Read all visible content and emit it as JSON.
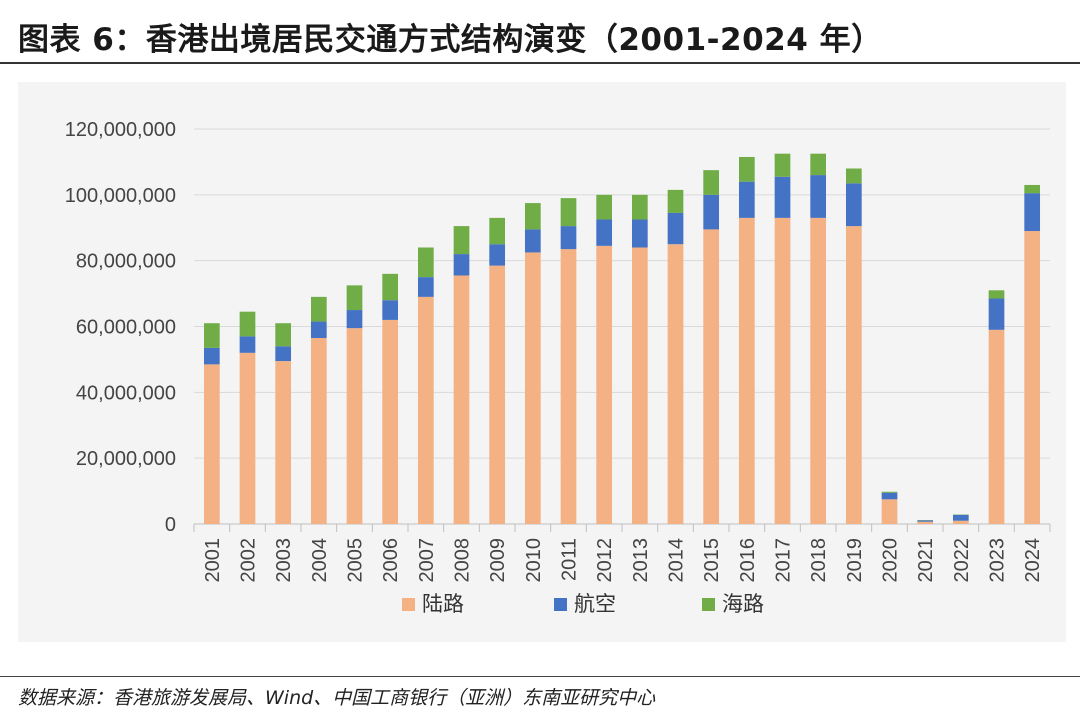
{
  "title": "图表 6：香港出境居民交通方式结构演变（2001-2024 年）",
  "source": "数据来源：香港旅游发展局、Wind、中国工商银行（亚洲）东南亚研究中心",
  "colors": {
    "land": "#F4B183",
    "air": "#4472C4",
    "sea": "#70AD47"
  },
  "chart_data": {
    "type": "bar",
    "stacked": true,
    "title": "",
    "xlabel": "",
    "ylabel": "",
    "ylim": [
      0,
      120000000
    ],
    "ytick_values": [
      0,
      20000000,
      40000000,
      60000000,
      80000000,
      100000000,
      120000000
    ],
    "ytick_labels": [
      "0",
      "20,000,000",
      "40,000,000",
      "60,000,000",
      "80,000,000",
      "100,000,000",
      "120,000,000"
    ],
    "grid": true,
    "legend_position": "bottom",
    "categories": [
      "2001",
      "2002",
      "2003",
      "2004",
      "2005",
      "2006",
      "2007",
      "2008",
      "2009",
      "2010",
      "2011",
      "2012",
      "2013",
      "2014",
      "2015",
      "2016",
      "2017",
      "2018",
      "2019",
      "2020",
      "2021",
      "2022",
      "2023",
      "2024"
    ],
    "series": [
      {
        "name": "陆路",
        "color_key": "land",
        "values": [
          48500000,
          52000000,
          49500000,
          56500000,
          59500000,
          62000000,
          69000000,
          75500000,
          78500000,
          82500000,
          83500000,
          84500000,
          84000000,
          85000000,
          89500000,
          93000000,
          93000000,
          93000000,
          90500000,
          7500000,
          700000,
          1000000,
          59000000,
          89000000
        ]
      },
      {
        "name": "航空",
        "color_key": "air",
        "values": [
          5000000,
          5000000,
          4500000,
          5000000,
          5500000,
          6000000,
          6000000,
          6500000,
          6500000,
          7000000,
          7000000,
          8000000,
          8500000,
          9500000,
          10500000,
          11000000,
          12500000,
          13000000,
          13000000,
          2000000,
          400000,
          1800000,
          9500000,
          11500000
        ]
      },
      {
        "name": "海路",
        "color_key": "sea",
        "values": [
          7500000,
          7500000,
          7000000,
          7500000,
          7500000,
          8000000,
          9000000,
          8500000,
          8000000,
          8000000,
          8500000,
          7500000,
          7500000,
          7000000,
          7500000,
          7500000,
          7000000,
          6500000,
          4500000,
          300000,
          100000,
          100000,
          2500000,
          2500000
        ]
      }
    ]
  }
}
